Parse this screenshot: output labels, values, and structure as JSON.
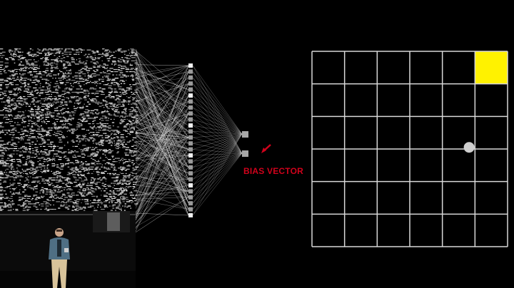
{
  "slide": {
    "bias_label": "BIAS VECTOR",
    "accent_color": "#D0021B",
    "highlight_color": "#FFF200",
    "grid_line_color": "#D8D8D8",
    "agent_dot_color": "#CFCFCF"
  },
  "grid": {
    "rows": 6,
    "cols": 6,
    "highlight_cell": {
      "row": 0,
      "col": 5
    },
    "agent_position": {
      "row": 2,
      "col": 4
    }
  },
  "network": {
    "input_layer_rows": 150,
    "hidden_layer_nodes": 26,
    "output_layer_nodes": 2
  },
  "stage": {
    "presenter_present": true,
    "screen_present": true
  }
}
